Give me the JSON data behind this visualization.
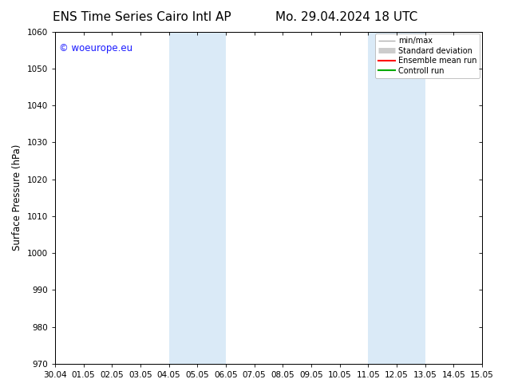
{
  "title_left": "ENS Time Series Cairo Intl AP",
  "title_right": "Mo. 29.04.2024 18 UTC",
  "ylabel": "Surface Pressure (hPa)",
  "ylim": [
    970,
    1060
  ],
  "yticks": [
    970,
    980,
    990,
    1000,
    1010,
    1020,
    1030,
    1040,
    1050,
    1060
  ],
  "xtick_labels": [
    "30.04",
    "01.05",
    "02.05",
    "03.05",
    "04.05",
    "05.05",
    "06.05",
    "07.05",
    "08.05",
    "09.05",
    "10.05",
    "11.05",
    "12.05",
    "13.05",
    "14.05",
    "15.05"
  ],
  "xlim_start": 0,
  "xlim_end": 15,
  "shaded_regions": [
    {
      "x_start": 4,
      "x_end": 6,
      "color": "#daeaf7"
    },
    {
      "x_start": 11,
      "x_end": 13,
      "color": "#daeaf7"
    }
  ],
  "watermark_text": "© woeurope.eu",
  "watermark_color": "#1a1aff",
  "legend_items": [
    {
      "label": "min/max",
      "color": "#b0b0b0",
      "lw": 1.0
    },
    {
      "label": "Standard deviation",
      "color": "#cccccc",
      "lw": 5
    },
    {
      "label": "Ensemble mean run",
      "color": "#ff0000",
      "lw": 1.5
    },
    {
      "label": "Controll run",
      "color": "#00aa00",
      "lw": 1.5
    }
  ],
  "background_color": "#ffffff",
  "title_fontsize": 11,
  "tick_fontsize": 7.5,
  "ylabel_fontsize": 8.5,
  "watermark_fontsize": 8.5
}
